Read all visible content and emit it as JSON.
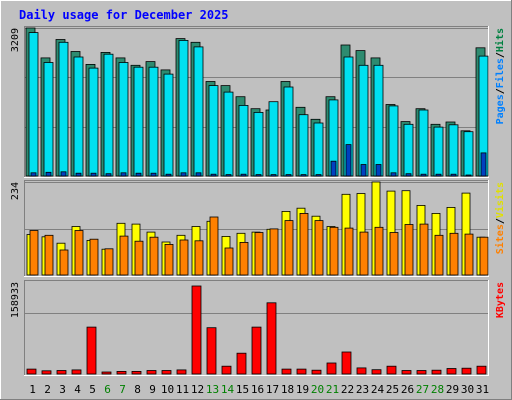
{
  "chart_data": {
    "type": "bar",
    "title": "Daily usage for December 2025",
    "categories": [
      "1",
      "2",
      "3",
      "4",
      "5",
      "6",
      "7",
      "8",
      "9",
      "10",
      "11",
      "12",
      "13",
      "14",
      "15",
      "16",
      "17",
      "18",
      "19",
      "20",
      "21",
      "22",
      "23",
      "24",
      "25",
      "26",
      "27",
      "28",
      "29",
      "30",
      "31"
    ],
    "weekend_days": [
      "6",
      "7",
      "13",
      "14",
      "20",
      "21",
      "27",
      "28"
    ],
    "panels": [
      {
        "name": "hits-files-pages",
        "ymax_label": "3209",
        "ymax": 3209,
        "right_labels": [
          {
            "text": "Pages",
            "color": "#0080FF"
          },
          {
            "text": "/",
            "color": "#000000"
          },
          {
            "text": "Files",
            "color": "#0080FF"
          },
          {
            "text": "/",
            "color": "#000000"
          },
          {
            "text": "Hits",
            "color": "#008040"
          }
        ],
        "series": [
          {
            "name": "Hits",
            "color": "#2E8B70",
            "values": [
              3209,
              2560,
              2960,
              2700,
              2420,
              2680,
              2560,
              2400,
              2480,
              2300,
              2980,
              2900,
              2050,
              1960,
              1720,
              1460,
              1430,
              2050,
              1490,
              1230,
              1720,
              2840,
              2720,
              2560,
              1550,
              1180,
              1460,
              1120,
              1170,
              980,
              2780
            ]
          },
          {
            "name": "Files",
            "color": "#00E0F0",
            "values": [
              3110,
              2460,
              2900,
              2580,
              2340,
              2640,
              2460,
              2360,
              2360,
              2210,
              2940,
              2800,
              1960,
              1820,
              1530,
              1380,
              1610,
              1930,
              1330,
              1150,
              1650,
              2580,
              2400,
              2400,
              1520,
              1120,
              1430,
              1060,
              1110,
              960,
              2600
            ]
          },
          {
            "name": "Pages",
            "color": "#0040C0",
            "values": [
              70,
              80,
              90,
              60,
              60,
              50,
              70,
              60,
              60,
              40,
              70,
              70,
              40,
              30,
              40,
              30,
              30,
              30,
              30,
              30,
              320,
              680,
              250,
              250,
              70,
              50,
              40,
              40,
              40,
              20,
              500
            ]
          }
        ]
      },
      {
        "name": "visits-sites",
        "ymax_label": "234",
        "ymax": 234,
        "right_labels": [
          {
            "text": "Sites",
            "color": "#FF8000"
          },
          {
            "text": "/",
            "color": "#000000"
          },
          {
            "text": "Visits",
            "color": "#E0E000"
          }
        ],
        "series": [
          {
            "name": "Visits",
            "color": "#FFFF00",
            "values": [
              102,
              96,
              80,
              122,
              87,
              65,
              130,
              128,
              108,
              83,
              100,
              122,
              135,
              97,
              105,
              108,
              115,
              160,
              168,
              148,
              122,
              203,
              205,
              234,
              211,
              212,
              175,
              155,
              170,
              206,
              95
            ]
          },
          {
            "name": "Sites",
            "color": "#FF8000",
            "values": [
              112,
              100,
              63,
              112,
              90,
              66,
              98,
              85,
              95,
              77,
              88,
              86,
              146,
              68,
              82,
              107,
              116,
              137,
              155,
              137,
              120,
              118,
              108,
              120,
              107,
              127,
              128,
              100,
              105,
              103,
              95
            ]
          }
        ]
      },
      {
        "name": "kbytes",
        "ymax_label": "158933",
        "ymax": 158933,
        "right_labels": [
          {
            "text": "KBytes",
            "color": "#FF0000"
          }
        ],
        "series": [
          {
            "name": "KBytes",
            "color": "#FF0000",
            "values": [
              8500,
              5500,
              6000,
              7000,
              81000,
              3500,
              4500,
              4500,
              6000,
              6000,
              7000,
              152000,
              80000,
              13500,
              36000,
              81000,
              123000,
              8500,
              8500,
              6500,
              19000,
              38000,
              10500,
              7500,
              13500,
              6000,
              6000,
              6500,
              9500,
              10000,
              13500
            ]
          }
        ]
      }
    ]
  }
}
